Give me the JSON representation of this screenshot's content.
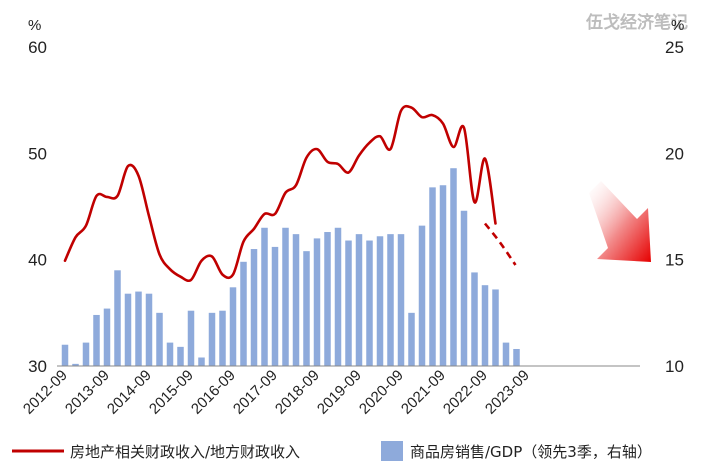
{
  "watermark": "伍戈经济笔记",
  "chart_data": {
    "type": "bar+line",
    "left_axis": {
      "unit": "%",
      "ylim": [
        30,
        60
      ],
      "ticks": [
        30,
        40,
        50,
        60
      ]
    },
    "right_axis": {
      "unit": "%",
      "ylim": [
        10,
        25
      ],
      "ticks": [
        10,
        15,
        20,
        25
      ]
    },
    "x_tick_labels": [
      "2012-09",
      "2013-09",
      "2014-09",
      "2015-09",
      "2016-09",
      "2017-09",
      "2018-09",
      "2019-09",
      "2020-09",
      "2021-09",
      "2022-09",
      "2023-09"
    ],
    "bar_series": {
      "name": "商品房销售/GDP（领先3季，右轴）",
      "color": "#8eaadb",
      "axis": "right",
      "values": [
        11.0,
        10.1,
        11.1,
        12.4,
        12.7,
        14.5,
        13.4,
        13.5,
        13.4,
        12.5,
        11.1,
        10.9,
        12.6,
        10.4,
        12.5,
        12.6,
        13.7,
        14.9,
        15.5,
        16.5,
        15.6,
        16.5,
        16.2,
        15.4,
        16.0,
        16.3,
        16.5,
        15.9,
        16.2,
        15.9,
        16.1,
        16.2,
        16.2,
        12.5,
        16.6,
        18.4,
        18.5,
        19.3,
        17.3,
        14.4,
        13.8,
        13.6,
        11.1,
        10.8
      ]
    },
    "line_series": {
      "name": "房地产相关财政收入/地方财政收入",
      "color": "#c00000",
      "axis": "left",
      "values": [
        39.9,
        42.1,
        43.2,
        46.0,
        45.9,
        46.0,
        48.8,
        47.9,
        44.1,
        40.5,
        39.1,
        38.4,
        38.1,
        39.9,
        40.3,
        38.6,
        38.6,
        41.7,
        42.9,
        44.3,
        44.3,
        46.3,
        47.0,
        49.6,
        50.4,
        49.2,
        49.0,
        48.2,
        49.8,
        51.0,
        51.6,
        50.4,
        54.0,
        54.3,
        53.4,
        53.6,
        52.8,
        50.6,
        52.4,
        45.4,
        49.5,
        43.4
      ],
      "dashed_start_index": 40,
      "dashed_values": [
        43.4,
        41.6,
        39.5
      ]
    },
    "arrow_annotation": "down-right, red gradient"
  },
  "legend": {
    "line_label": "房地产相关财政收入/地方财政收入",
    "bar_label": "商品房销售/GDP（领先3季，右轴）"
  }
}
